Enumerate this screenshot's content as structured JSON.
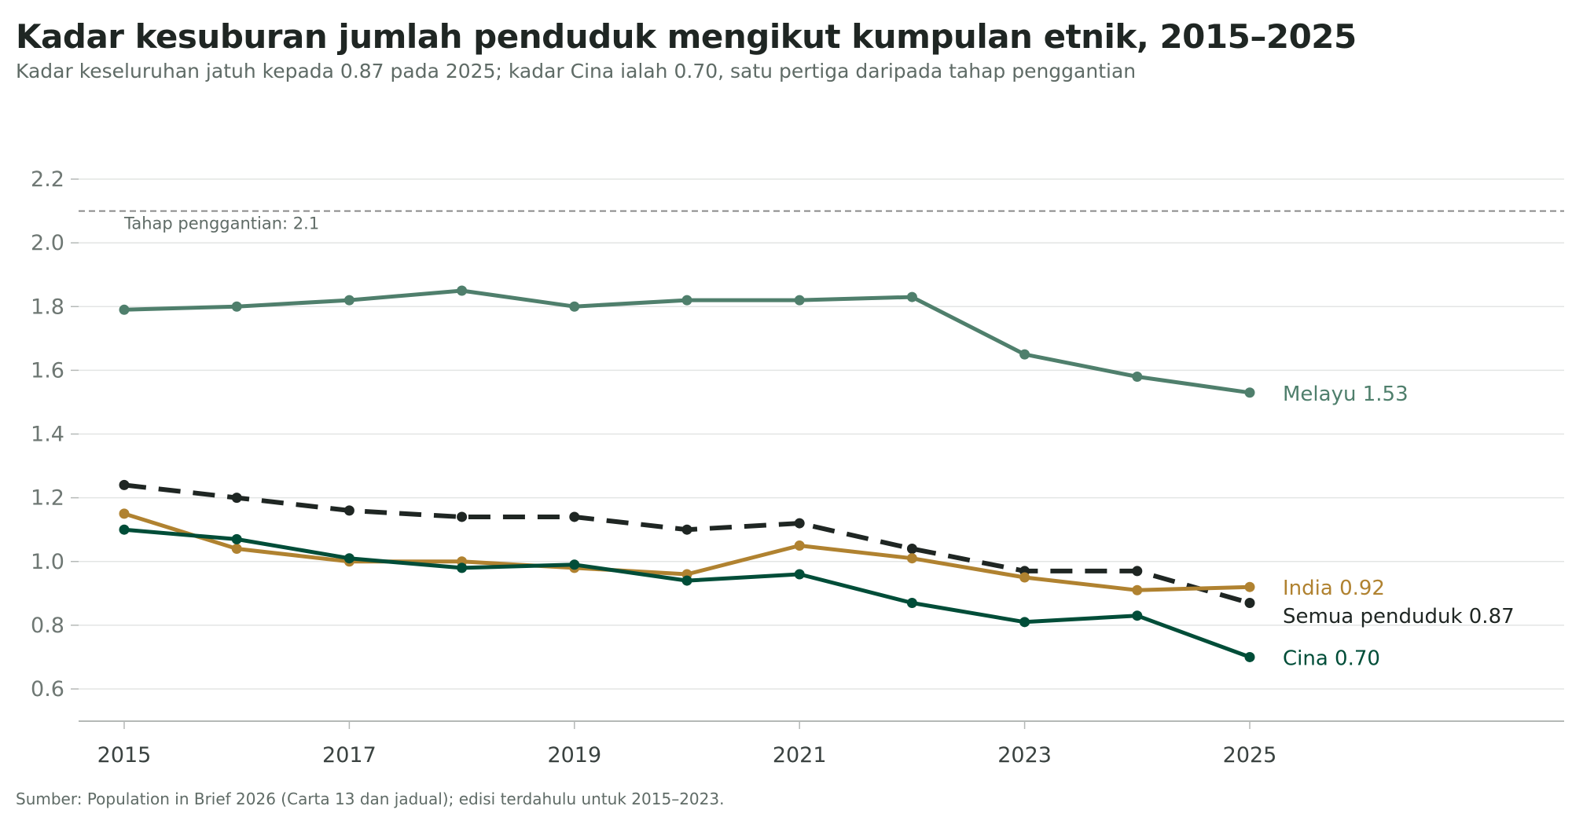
{
  "header": {
    "title": "Kadar kesuburan jumlah penduduk mengikut kumpulan etnik, 2015–2025",
    "subtitle": "Kadar keseluruhan jatuh kepada 0.87 pada 2025; kadar Cina ialah 0.70, satu pertiga daripada tahap penggantian"
  },
  "footer": {
    "source": "Sumber: Population in Brief 2026 (Carta 13 dan jadual); edisi terdahulu untuk 2015–2023."
  },
  "chart_data": {
    "type": "line",
    "title": "Kadar kesuburan jumlah penduduk mengikut kumpulan etnik, 2015–2025",
    "x": [
      2015,
      2016,
      2017,
      2018,
      2019,
      2020,
      2021,
      2022,
      2023,
      2024,
      2025
    ],
    "xticks": [
      "2015",
      "2017",
      "2019",
      "2021",
      "2023",
      "2025"
    ],
    "yticks": [
      "0.6",
      "0.8",
      "1.0",
      "1.2",
      "1.4",
      "1.6",
      "1.8",
      "2.0",
      "2.2"
    ],
    "ylim": [
      0.5,
      2.25
    ],
    "grid": "horizontal",
    "reference_line": {
      "value": 2.1,
      "label": "Tahap penggantian: 2.1",
      "color": "#8a8a8a",
      "style": "dashed"
    },
    "series": [
      {
        "name": "Melayu",
        "end_label": "Melayu 1.53",
        "color": "#4f7f6c",
        "dashed": false,
        "values": [
          1.79,
          1.8,
          1.82,
          1.85,
          1.8,
          1.82,
          1.82,
          1.83,
          1.65,
          1.58,
          1.53
        ]
      },
      {
        "name": "Semua penduduk",
        "end_label": "Semua penduduk 0.87",
        "color": "#1f2623",
        "dashed": true,
        "values": [
          1.24,
          1.2,
          1.16,
          1.14,
          1.14,
          1.1,
          1.12,
          1.04,
          0.97,
          0.97,
          0.87
        ]
      },
      {
        "name": "India",
        "end_label": "India 0.92",
        "color": "#b08230",
        "dashed": false,
        "values": [
          1.15,
          1.04,
          1.0,
          1.0,
          0.98,
          0.96,
          1.05,
          1.01,
          0.95,
          0.91,
          0.92
        ]
      },
      {
        "name": "Cina",
        "end_label": "Cina 0.70",
        "color": "#004d38",
        "dashed": false,
        "values": [
          1.1,
          1.07,
          1.01,
          0.98,
          0.99,
          0.94,
          0.96,
          0.87,
          0.81,
          0.83,
          0.7
        ]
      }
    ]
  }
}
